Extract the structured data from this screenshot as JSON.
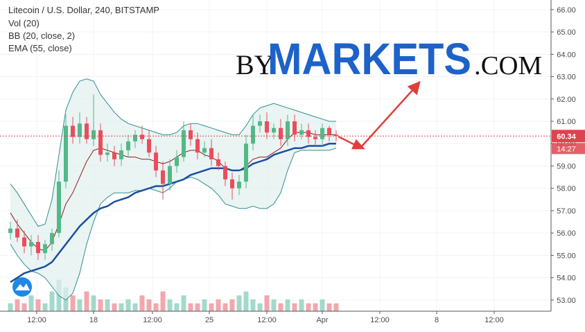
{
  "chart_data": {
    "type": "candlestick",
    "title": "Litecoin / U.S. Dollar, 240, BITSTAMP",
    "indicators": [
      "Vol (20)",
      "BB (20, close, 2)",
      "EMA (55, close)"
    ],
    "watermark": {
      "prefix": "BY",
      "name": "MARKETS",
      "suffix": ".COM"
    },
    "x": [
      0.5,
      1.5,
      2.5,
      3.5,
      4.5,
      5.5,
      6.5,
      7.5,
      8.5,
      9.5,
      10.5,
      11.5,
      12.5,
      13.5,
      14.5,
      15.5,
      16.5,
      17.5,
      18.5,
      19.5,
      20.5,
      21.5,
      22.5,
      23.5,
      24.5,
      25.5,
      26.5,
      27.5,
      28.5,
      29.5,
      30.5,
      31.5,
      32.5,
      33.5,
      34.5,
      35.5,
      36.5,
      37.5,
      38.5,
      39.5,
      40.5,
      41.5,
      42.5,
      43.5,
      44.5,
      45.5,
      46.5,
      47.5
    ],
    "open": [
      56.0,
      56.2,
      55.8,
      55.4,
      55.6,
      55.1,
      55.5,
      56.0,
      58.3,
      60.8,
      60.3,
      60.9,
      60.2,
      60.6,
      59.5,
      59.6,
      59.3,
      59.7,
      60.1,
      60.4,
      60.2,
      59.6,
      58.8,
      58.2,
      59.0,
      59.4,
      60.6,
      60.2,
      59.6,
      59.8,
      59.3,
      59.0,
      58.4,
      58.0,
      58.3,
      60.0,
      60.8,
      61.0,
      60.5,
      60.7,
      60.2,
      61.0,
      60.4,
      60.6,
      60.3,
      60.2,
      60.7,
      60.4
    ],
    "high": [
      56.5,
      56.6,
      56.1,
      55.9,
      55.9,
      55.7,
      56.2,
      58.8,
      61.3,
      61.2,
      61.4,
      61.2,
      62.2,
      60.9,
      60.0,
      59.9,
      60.0,
      60.4,
      60.6,
      60.8,
      60.6,
      59.9,
      59.2,
      59.3,
      59.7,
      61.0,
      60.9,
      60.5,
      60.1,
      60.2,
      59.6,
      59.2,
      58.7,
      58.6,
      60.4,
      61.3,
      61.3,
      61.4,
      60.9,
      61.1,
      61.3,
      61.3,
      60.9,
      60.9,
      60.6,
      60.9,
      60.8,
      60.6
    ],
    "low": [
      55.7,
      55.6,
      55.1,
      55.0,
      54.8,
      54.8,
      55.2,
      55.8,
      58.0,
      60.0,
      60.0,
      60.0,
      59.9,
      59.2,
      59.2,
      59.0,
      59.0,
      59.4,
      59.8,
      60.0,
      59.4,
      58.5,
      57.5,
      57.9,
      58.7,
      59.2,
      59.9,
      59.3,
      59.4,
      59.0,
      58.8,
      58.1,
      57.5,
      57.7,
      58.0,
      59.7,
      60.5,
      60.2,
      60.2,
      59.9,
      59.9,
      60.1,
      60.2,
      60.0,
      59.9,
      59.9,
      60.1,
      60.1
    ],
    "close": [
      56.2,
      55.8,
      55.4,
      55.6,
      55.1,
      55.5,
      56.0,
      58.3,
      60.8,
      60.3,
      60.9,
      60.2,
      60.6,
      59.5,
      59.6,
      59.3,
      59.7,
      60.1,
      60.4,
      60.2,
      59.6,
      58.8,
      58.2,
      59.0,
      59.4,
      60.6,
      60.2,
      59.6,
      59.8,
      59.3,
      59.0,
      58.4,
      58.0,
      58.3,
      60.0,
      60.8,
      61.0,
      60.5,
      60.7,
      60.2,
      61.0,
      60.4,
      60.6,
      60.3,
      60.2,
      60.7,
      60.4,
      60.34
    ],
    "volume": [
      2,
      3,
      2,
      4,
      3,
      2,
      5,
      8,
      6,
      4,
      3,
      5,
      4,
      3,
      3,
      2,
      2,
      3,
      2,
      4,
      3,
      2,
      5,
      3,
      2,
      4,
      2,
      2,
      3,
      2,
      3,
      2,
      3,
      4,
      5,
      3,
      2,
      4,
      3,
      2,
      3,
      2,
      3,
      2,
      2,
      3,
      2,
      2
    ],
    "bb_upper": [
      58.2,
      57.8,
      57.3,
      56.8,
      56.3,
      56.4,
      57.5,
      59.5,
      61.5,
      62.3,
      62.8,
      62.9,
      62.8,
      62.2,
      61.8,
      61.4,
      61.1,
      60.9,
      60.8,
      60.7,
      60.6,
      60.5,
      60.4,
      60.4,
      60.5,
      60.8,
      60.9,
      60.9,
      60.8,
      60.7,
      60.6,
      60.5,
      60.4,
      60.4,
      60.8,
      61.3,
      61.6,
      61.7,
      61.8,
      61.7,
      61.6,
      61.5,
      61.4,
      61.3,
      61.2,
      61.1,
      61.0,
      61.0
    ],
    "bb_basis": [
      56.9,
      56.4,
      56.0,
      55.6,
      55.3,
      55.2,
      55.6,
      56.4,
      57.3,
      57.8,
      58.5,
      59.2,
      59.7,
      59.8,
      59.7,
      59.6,
      59.5,
      59.4,
      59.4,
      59.3,
      59.3,
      59.2,
      59.1,
      59.2,
      59.4,
      59.6,
      59.7,
      59.7,
      59.5,
      59.4,
      59.2,
      58.9,
      58.8,
      58.8,
      59.0,
      59.3,
      59.4,
      59.4,
      59.6,
      59.8,
      60.2,
      60.5,
      60.5,
      60.5,
      60.4,
      60.4,
      60.4,
      60.4
    ],
    "bb_lower": [
      55.5,
      55.0,
      54.6,
      54.3,
      54.2,
      54.0,
      53.6,
      53.2,
      53.0,
      53.3,
      54.2,
      55.5,
      56.5,
      57.3,
      57.6,
      57.8,
      57.8,
      57.8,
      57.9,
      57.9,
      58.0,
      57.9,
      57.8,
      58.0,
      58.3,
      58.4,
      58.5,
      58.4,
      58.2,
      58.0,
      57.7,
      57.3,
      57.2,
      57.1,
      57.1,
      57.2,
      57.1,
      57.1,
      57.3,
      57.8,
      58.8,
      59.6,
      59.7,
      59.7,
      59.7,
      59.7,
      59.7,
      59.8
    ],
    "ema": [
      53.8,
      54.0,
      54.2,
      54.3,
      54.4,
      54.5,
      54.7,
      55.1,
      55.5,
      55.9,
      56.3,
      56.6,
      56.9,
      57.1,
      57.2,
      57.4,
      57.5,
      57.6,
      57.8,
      57.9,
      58.0,
      58.1,
      58.1,
      58.2,
      58.3,
      58.4,
      58.6,
      58.7,
      58.8,
      58.9,
      58.9,
      58.9,
      58.8,
      58.8,
      58.9,
      59.1,
      59.2,
      59.3,
      59.5,
      59.6,
      59.7,
      59.8,
      59.8,
      59.9,
      59.9,
      59.9,
      60.0,
      60.0
    ],
    "up_color": "#53b987",
    "down_color": "#eb4d5c",
    "volume_up_color": "#a3d9cb",
    "volume_down_color": "#f2a7ad",
    "bb_color": "#2f8f8f",
    "bb_fill": "#dff0ee",
    "basis_color": "#8e1b1b",
    "ema_color": "#1a4fa0",
    "price_color": "#e0434e",
    "last_price": 60.34,
    "countdown": "14:27",
    "xlim": [
      0,
      78.5
    ],
    "xticks": [
      {
        "value": 4.3,
        "label": "12:00"
      },
      {
        "value": 12.5,
        "label": "18"
      },
      {
        "value": 21,
        "label": "12:00"
      },
      {
        "value": 29.2,
        "label": "25"
      },
      {
        "value": 37.5,
        "label": "12:00"
      },
      {
        "value": 45.5,
        "label": "Apr"
      },
      {
        "value": 53.8,
        "label": "12:00"
      },
      {
        "value": 62,
        "label": "8"
      },
      {
        "value": 70.3,
        "label": "12:00"
      }
    ],
    "ylim": [
      52.5,
      66.43
    ],
    "yticks": [
      {
        "value": 53,
        "label": "53.00"
      },
      {
        "value": 54,
        "label": "54.00"
      },
      {
        "value": 55,
        "label": "55.00"
      },
      {
        "value": 56,
        "label": "56.00"
      },
      {
        "value": 57,
        "label": "57.00"
      },
      {
        "value": 58,
        "label": "58.00"
      },
      {
        "value": 59,
        "label": "59.00"
      },
      {
        "value": 60,
        "label": "60.00"
      },
      {
        "value": 61,
        "label": "61.00"
      },
      {
        "value": 62,
        "label": "62.00"
      },
      {
        "value": 63,
        "label": "63.00"
      },
      {
        "value": 64,
        "label": "64.00"
      },
      {
        "value": 65,
        "label": "65.00"
      },
      {
        "value": 66,
        "label": "66.00"
      }
    ],
    "vol_ylim": [
      0,
      10
    ],
    "grid": true
  }
}
